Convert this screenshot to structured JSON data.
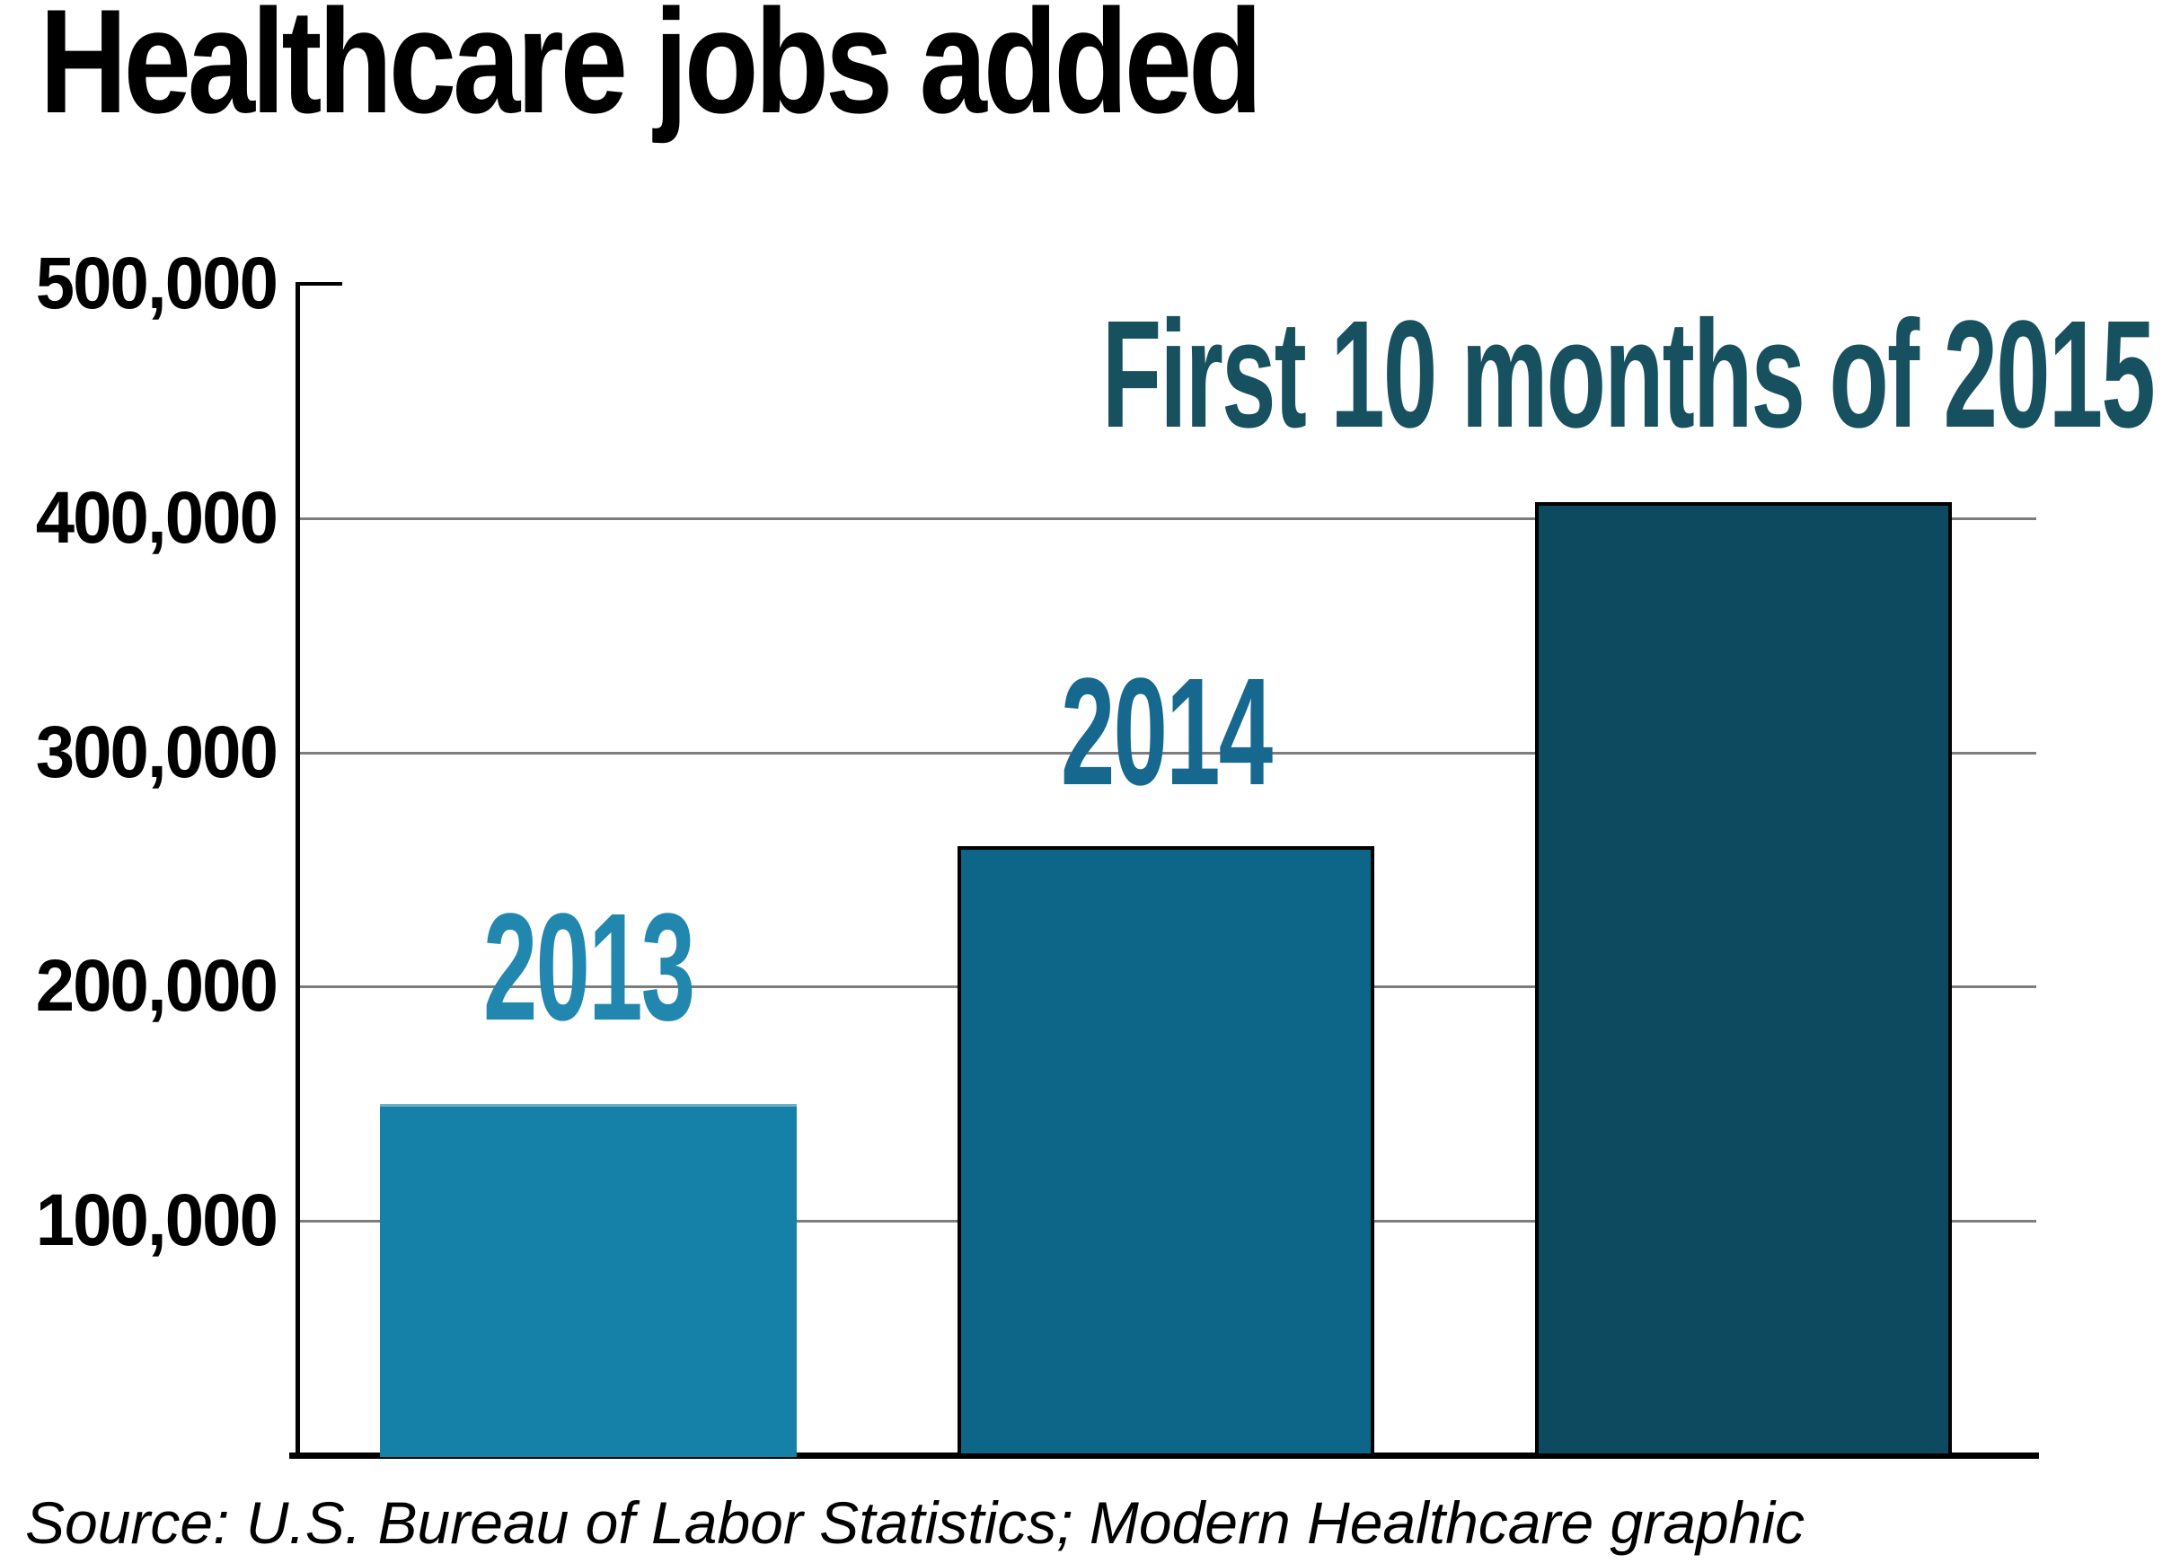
{
  "title": "Healthcare jobs added",
  "source": "Source: U.S. Bureau of Labor Statistics; Modern Healthcare graphic",
  "chart_data": {
    "type": "bar",
    "title": "Healthcare jobs added",
    "categories": [
      "2013",
      "2014",
      "First 10 months of 2015"
    ],
    "values": [
      150000,
      260000,
      407000
    ],
    "xlabel": "",
    "ylabel": "",
    "ylim": [
      0,
      500000
    ],
    "ytick_interval": 100000,
    "yticks": [
      {
        "value": 100000,
        "label": "100,000"
      },
      {
        "value": 200000,
        "label": "200,000"
      },
      {
        "value": 300000,
        "label": "300,000"
      },
      {
        "value": 400000,
        "label": "400,000"
      },
      {
        "value": 500000,
        "label": "500,000"
      }
    ],
    "grid": true,
    "legend": "none",
    "bar_fill_colors": [
      "#1581a8",
      "#0d6587",
      "#0d4a5f"
    ],
    "bar_border_colors": [
      "none",
      "#000000",
      "#000000"
    ],
    "category_label_colors": [
      "#2187ae",
      "#16688e",
      "#17505f"
    ],
    "grid_color": "#7d7d7d",
    "axis_color": "#000000",
    "source": "Source: U.S. Bureau of Labor Statistics; Modern Healthcare graphic"
  }
}
